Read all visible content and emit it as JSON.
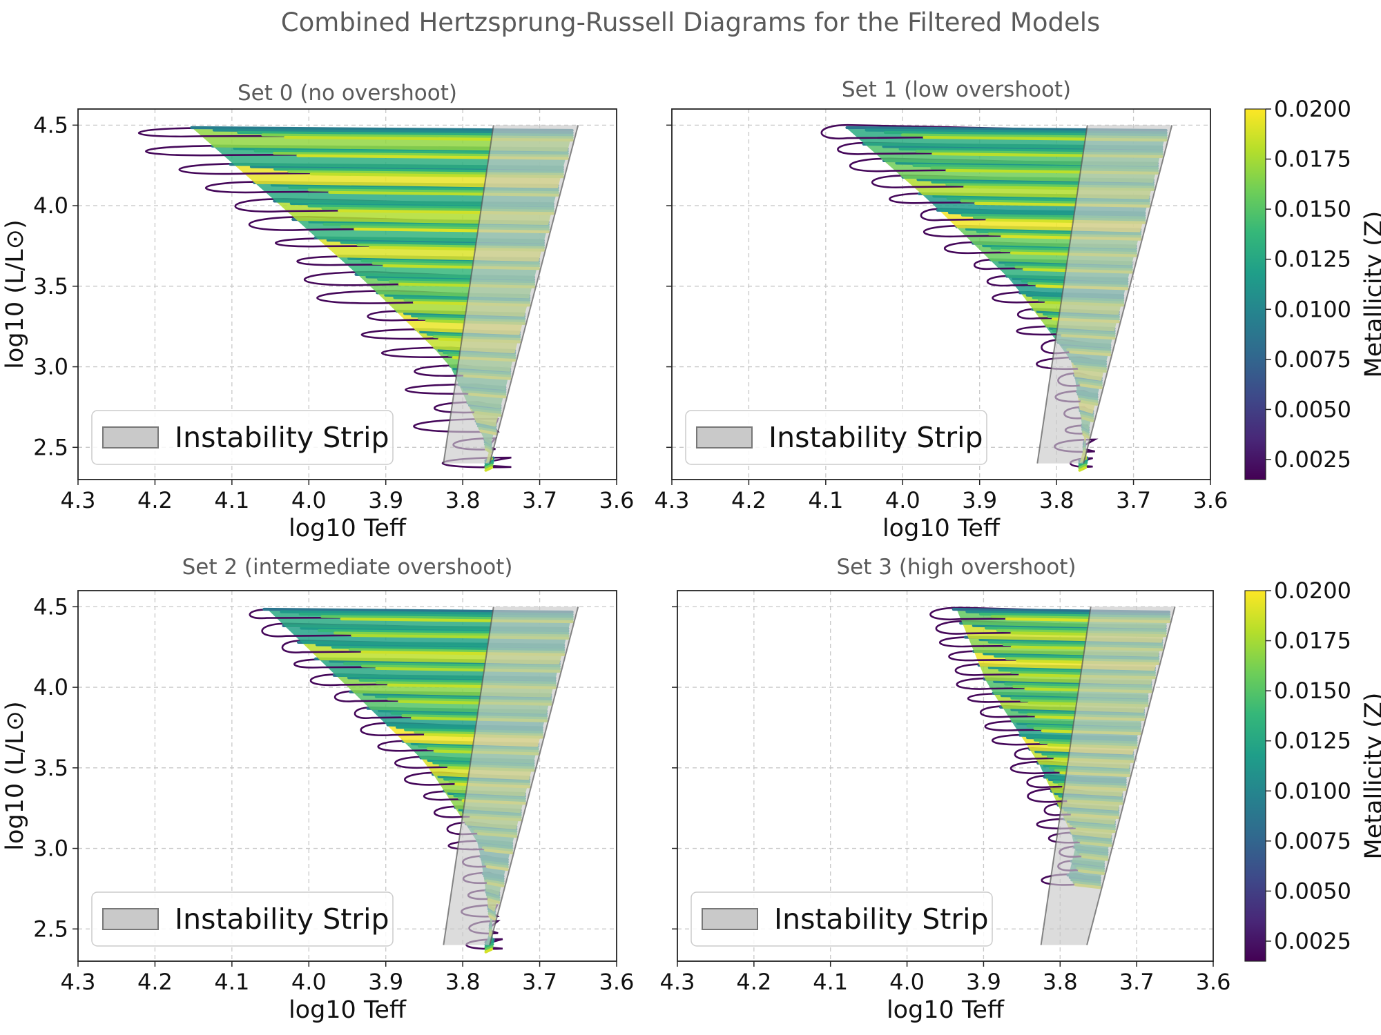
{
  "figure_title": "Combined Hertzsprung-Russell Diagrams for the Filtered Models",
  "colors": {
    "strip_fill": "#c9c9c9",
    "strip_edge": "#555555",
    "viridis": [
      "#440154",
      "#482878",
      "#3e4989",
      "#31688e",
      "#26828e",
      "#1f9e89",
      "#35b779",
      "#6ece58",
      "#b5de2b",
      "#fde725"
    ]
  },
  "chart_data": [
    {
      "type": "scatter",
      "title": "Set 0 (no overshoot)",
      "xlabel": "log10 Teff",
      "ylabel": "log10 (L/L⊙)",
      "xlim": [
        4.3,
        3.6
      ],
      "ylim": [
        2.3,
        4.6
      ],
      "xticks": [
        "4.3",
        "4.2",
        "4.1",
        "4.0",
        "3.9",
        "3.8",
        "3.7",
        "3.6"
      ],
      "yticks": [
        "2.5",
        "3.0",
        "3.5",
        "4.0",
        "4.5"
      ],
      "legend": "Instability Strip",
      "instability_strip": {
        "L_range": [
          2.4,
          4.5
        ],
        "blue_edge_Teff": [
          3.825,
          3.76
        ],
        "red_edge_Teff": [
          3.765,
          3.65
        ]
      },
      "hot_edge_Teff": {
        "L": [
          2.4,
          3.0,
          3.5,
          4.0,
          4.45
        ],
        "Teff": [
          3.76,
          3.82,
          3.93,
          4.05,
          4.16
        ]
      },
      "track_count": 19,
      "blue_loop_extent": [
        0.04,
        0.12
      ],
      "z_range": [
        0.0015,
        0.02
      ]
    },
    {
      "type": "scatter",
      "title": "Set 1 (low overshoot)",
      "xlabel": "log10 Teff",
      "ylabel": "",
      "xlim": [
        4.3,
        3.6
      ],
      "ylim": [
        2.3,
        4.6
      ],
      "xticks": [
        "4.3",
        "4.2",
        "4.1",
        "4.0",
        "3.9",
        "3.8",
        "3.7",
        "3.6"
      ],
      "yticks": [],
      "legend": "Instability Strip",
      "instability_strip": {
        "L_range": [
          2.4,
          4.5
        ],
        "blue_edge_Teff": [
          3.825,
          3.76
        ],
        "red_edge_Teff": [
          3.765,
          3.65
        ]
      },
      "hot_edge_Teff": {
        "L": [
          2.4,
          3.0,
          3.5,
          4.0,
          4.45
        ],
        "Teff": [
          3.76,
          3.78,
          3.86,
          3.97,
          4.08
        ]
      },
      "track_count": 21,
      "blue_loop_extent": [
        0.02,
        0.06
      ],
      "z_range": [
        0.0015,
        0.02
      ]
    },
    {
      "type": "scatter",
      "title": "Set 2 (intermediate overshoot)",
      "xlabel": "log10 Teff",
      "ylabel": "log10 (L/L⊙)",
      "xlim": [
        4.3,
        3.6
      ],
      "ylim": [
        2.3,
        4.6
      ],
      "xticks": [
        "4.3",
        "4.2",
        "4.1",
        "4.0",
        "3.9",
        "3.8",
        "3.7",
        "3.6"
      ],
      "yticks": [
        "2.5",
        "3.0",
        "3.5",
        "4.0",
        "4.5"
      ],
      "legend": "Instability Strip",
      "instability_strip": {
        "L_range": [
          2.4,
          4.5
        ],
        "blue_edge_Teff": [
          3.825,
          3.76
        ],
        "red_edge_Teff": [
          3.765,
          3.65
        ]
      },
      "hot_edge_Teff": {
        "L": [
          2.4,
          3.0,
          3.5,
          4.0,
          4.45
        ],
        "Teff": [
          3.76,
          3.78,
          3.85,
          3.96,
          4.06
        ]
      },
      "track_count": 21,
      "blue_loop_extent": [
        0.02,
        0.05
      ],
      "z_range": [
        0.0015,
        0.02
      ]
    },
    {
      "type": "scatter",
      "title": "Set 3 (high overshoot)",
      "xlabel": "log10 Teff",
      "ylabel": "",
      "xlim": [
        4.3,
        3.6
      ],
      "ylim": [
        2.3,
        4.6
      ],
      "xticks": [
        "4.3",
        "4.2",
        "4.1",
        "4.0",
        "3.9",
        "3.8",
        "3.7",
        "3.6"
      ],
      "yticks": [],
      "legend": "Instability Strip",
      "instability_strip": {
        "L_range": [
          2.4,
          4.5
        ],
        "blue_edge_Teff": [
          3.825,
          3.76
        ],
        "red_edge_Teff": [
          3.765,
          3.65
        ]
      },
      "hot_edge_Teff": {
        "L": [
          2.8,
          3.0,
          3.5,
          4.0,
          4.45
        ],
        "Teff": [
          3.79,
          3.78,
          3.83,
          3.9,
          3.94
        ]
      },
      "track_count": 20,
      "blue_loop_extent": [
        0.02,
        0.05
      ],
      "z_range": [
        0.0015,
        0.02
      ]
    }
  ],
  "colorbars": [
    {
      "label": "Metallicity (Z)",
      "ticks": [
        "0.0200",
        "0.0175",
        "0.0150",
        "0.0125",
        "0.0100",
        "0.0075",
        "0.0050",
        "0.0025"
      ],
      "range": [
        0.0015,
        0.02
      ]
    },
    {
      "label": "Metallicity (Z)",
      "ticks": [
        "0.0200",
        "0.0175",
        "0.0150",
        "0.0125",
        "0.0100",
        "0.0075",
        "0.0050",
        "0.0025"
      ],
      "range": [
        0.0015,
        0.02
      ]
    }
  ]
}
